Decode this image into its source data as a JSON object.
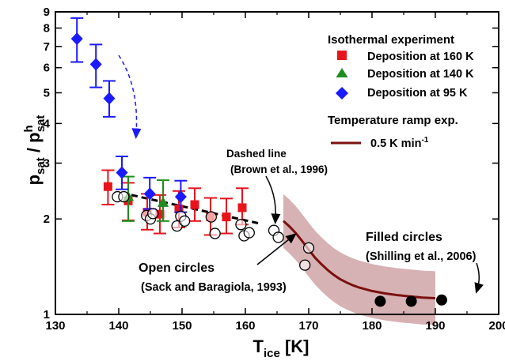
{
  "chart_data": {
    "type": "scatter",
    "xscale": "linear",
    "yscale": "log",
    "xlim": [
      130,
      200
    ],
    "ylim": [
      1,
      9
    ],
    "x_ticks": [
      130,
      140,
      150,
      160,
      170,
      180,
      190,
      200
    ],
    "y_ticks": [
      1,
      2,
      3,
      4,
      5,
      6,
      7,
      8,
      9
    ],
    "xlabel": {
      "main": "T",
      "sub": "ice",
      "unit": " [K]"
    },
    "ylabel": {
      "p1": "p",
      "s1": "sat",
      "mid": " / p",
      "sup": "h",
      "s2": "sat"
    },
    "legend": {
      "title": "Isothermal experiment",
      "entries": [
        {
          "label": "Deposition at 160 K",
          "color": "#e8141c",
          "marker": "square"
        },
        {
          "label": "Deposition at 140 K",
          "color": "#1e8c1e",
          "marker": "triangle"
        },
        {
          "label": "Deposition at 95 K",
          "color": "#1a1aff",
          "marker": "diamond"
        }
      ],
      "ramp_title": "Temperature ramp exp.",
      "ramp_label": "0.5 K min",
      "ramp_sup": "-1",
      "ramp_color": "#7a1010"
    },
    "annotations": {
      "dashed_label": "Dashed line",
      "dashed_ref": "(Brown et al., 1996)",
      "filled_label": "Filled circles",
      "filled_ref": "(Shilling et al., 2006)",
      "open_label": "Open circles",
      "open_ref": "(Sack and Baragiola, 1993)"
    },
    "series": [
      {
        "name": "Deposition at 160 K",
        "color": "#e8141c",
        "marker": "square",
        "points": [
          {
            "x": 138.3,
            "y": 2.53,
            "lo": 2.22,
            "hi": 2.85
          },
          {
            "x": 141.5,
            "y": 2.28,
            "lo": 1.98,
            "hi": 2.6
          },
          {
            "x": 144.5,
            "y": 2.1,
            "lo": 1.85,
            "hi": 2.4
          },
          {
            "x": 146.5,
            "y": 2.07,
            "lo": 1.8,
            "hi": 2.38
          },
          {
            "x": 149.5,
            "y": 2.15,
            "lo": 1.88,
            "hi": 2.45
          },
          {
            "x": 152.0,
            "y": 2.22,
            "lo": 1.97,
            "hi": 2.5
          },
          {
            "x": 154.5,
            "y": 2.03,
            "lo": 1.78,
            "hi": 2.33
          },
          {
            "x": 157.0,
            "y": 2.03,
            "lo": 1.8,
            "hi": 2.32
          },
          {
            "x": 159.5,
            "y": 2.17,
            "lo": 1.92,
            "hi": 2.5
          }
        ]
      },
      {
        "name": "Deposition at 140 K",
        "color": "#1e8c1e",
        "marker": "triangle",
        "points": [
          {
            "x": 141.5,
            "y": 2.36,
            "lo": 1.97,
            "hi": 2.72
          },
          {
            "x": 147.0,
            "y": 2.26,
            "lo": 1.97,
            "hi": 2.65
          }
        ]
      },
      {
        "name": "Deposition at 95 K",
        "color": "#1a1aff",
        "marker": "diamond",
        "points": [
          {
            "x": 133.4,
            "y": 7.4,
            "lo": 6.25,
            "hi": 8.6
          },
          {
            "x": 136.4,
            "y": 6.15,
            "lo": 5.2,
            "hi": 7.1
          },
          {
            "x": 138.5,
            "y": 4.8,
            "lo": 4.2,
            "hi": 5.45
          },
          {
            "x": 140.5,
            "y": 2.8,
            "lo": 2.48,
            "hi": 3.15
          },
          {
            "x": 144.9,
            "y": 2.4,
            "lo": 2.15,
            "hi": 2.7
          },
          {
            "x": 149.8,
            "y": 2.35,
            "lo": 2.1,
            "hi": 2.64
          }
        ]
      },
      {
        "name": "Open circles",
        "color": "#000000",
        "marker": "open-circle",
        "points": [
          {
            "x": 139.8,
            "y": 2.35
          },
          {
            "x": 140.8,
            "y": 2.35
          },
          {
            "x": 144.4,
            "y": 2.05
          },
          {
            "x": 145.0,
            "y": 2.0
          },
          {
            "x": 145.4,
            "y": 2.08
          },
          {
            "x": 149.2,
            "y": 1.9
          },
          {
            "x": 149.8,
            "y": 2.04
          },
          {
            "x": 150.4,
            "y": 1.97
          },
          {
            "x": 154.6,
            "y": 2.03
          },
          {
            "x": 155.2,
            "y": 1.8
          },
          {
            "x": 159.3,
            "y": 1.92
          },
          {
            "x": 159.8,
            "y": 1.77
          },
          {
            "x": 160.6,
            "y": 1.81
          },
          {
            "x": 164.5,
            "y": 1.84
          },
          {
            "x": 165.2,
            "y": 1.75
          },
          {
            "x": 169.4,
            "y": 1.43
          },
          {
            "x": 170.0,
            "y": 1.62
          }
        ]
      },
      {
        "name": "Filled circles",
        "color": "#000000",
        "marker": "filled-circle",
        "points": [
          {
            "x": 181.3,
            "y": 1.1
          },
          {
            "x": 186.2,
            "y": 1.1
          },
          {
            "x": 191.0,
            "y": 1.11
          }
        ]
      }
    ],
    "dashed_line": {
      "x": [
        142,
        162
      ],
      "y": [
        2.38,
        1.94
      ]
    },
    "ramp_curve": {
      "x": [
        166,
        167,
        168,
        169,
        170,
        171,
        172,
        173,
        174,
        175,
        176,
        177,
        178,
        180,
        182,
        184,
        186,
        188,
        190
      ],
      "y": [
        1.97,
        1.89,
        1.8,
        1.7,
        1.6,
        1.51,
        1.44,
        1.38,
        1.33,
        1.29,
        1.26,
        1.235,
        1.215,
        1.185,
        1.165,
        1.15,
        1.14,
        1.13,
        1.125
      ],
      "band": 0.085
    }
  }
}
